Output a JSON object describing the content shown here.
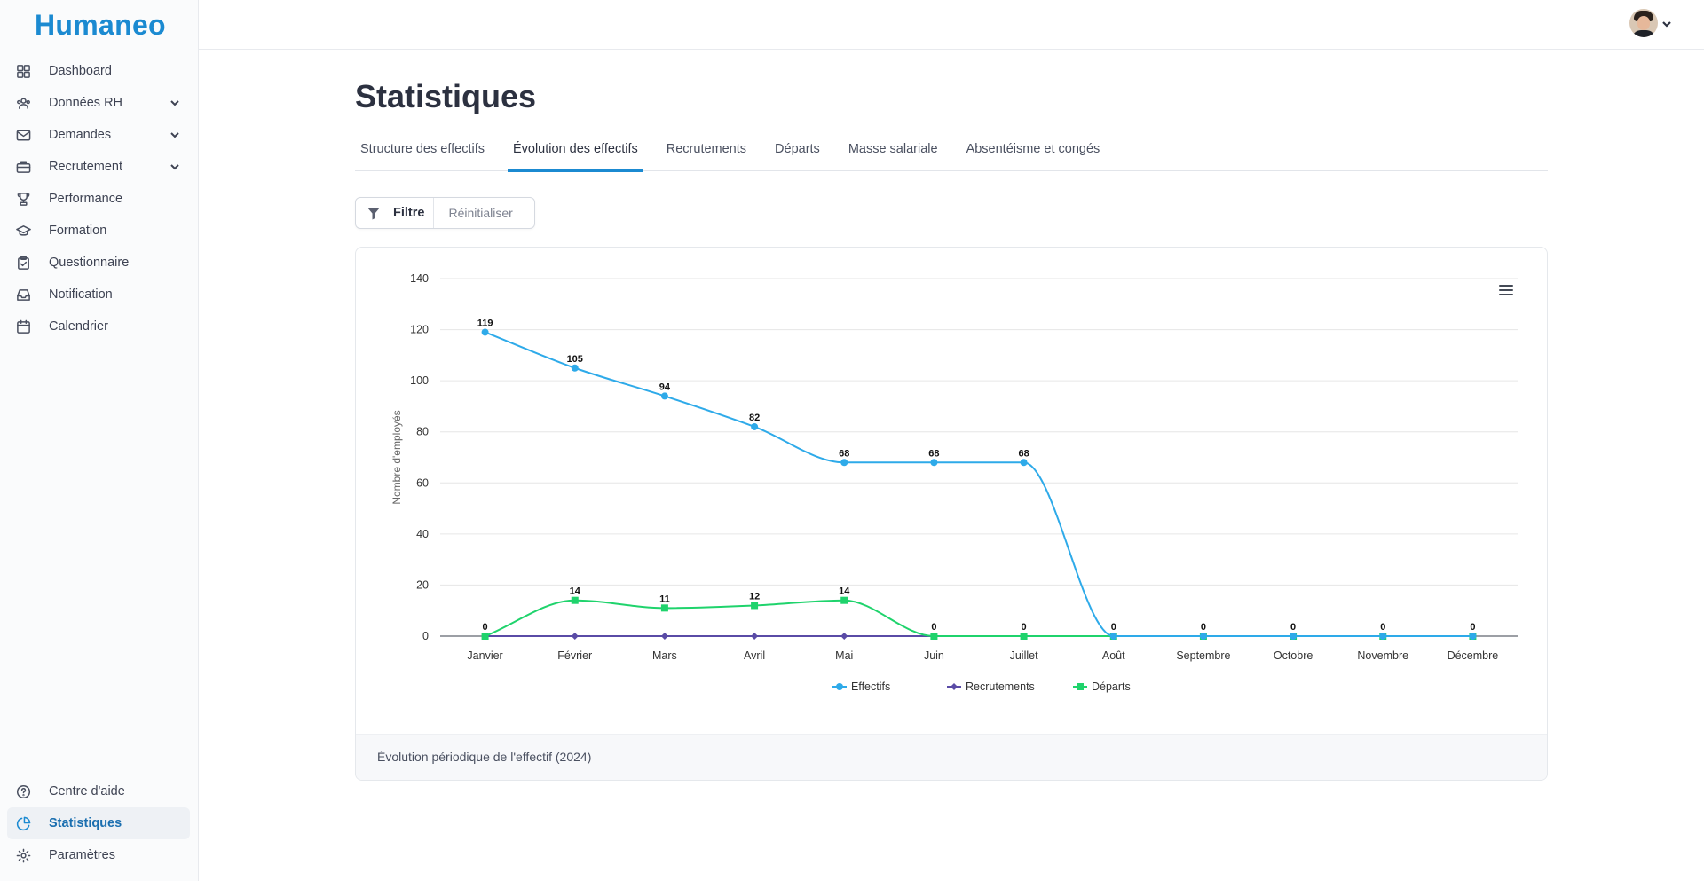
{
  "app": {
    "name": "Humaneo"
  },
  "sidebar": {
    "items": [
      {
        "label": "Dashboard",
        "icon": "grid-icon",
        "expandable": false
      },
      {
        "label": "Données RH",
        "icon": "users-icon",
        "expandable": true
      },
      {
        "label": "Demandes",
        "icon": "mail-icon",
        "expandable": true
      },
      {
        "label": "Recrutement",
        "icon": "briefcase-icon",
        "expandable": true
      },
      {
        "label": "Performance",
        "icon": "trophy-icon",
        "expandable": false
      },
      {
        "label": "Formation",
        "icon": "graduation-cap-icon",
        "expandable": false
      },
      {
        "label": "Questionnaire",
        "icon": "clipboard-icon",
        "expandable": false
      },
      {
        "label": "Notification",
        "icon": "inbox-icon",
        "expandable": false
      },
      {
        "label": "Calendrier",
        "icon": "calendar-icon",
        "expandable": false
      }
    ],
    "bottom_items": [
      {
        "label": "Centre d'aide",
        "icon": "help-circle-icon",
        "active": false
      },
      {
        "label": "Statistiques",
        "icon": "pie-chart-icon",
        "active": true
      },
      {
        "label": "Paramètres",
        "icon": "gear-icon",
        "active": false
      }
    ]
  },
  "page": {
    "title": "Statistiques"
  },
  "tabs": [
    {
      "label": "Structure des effectifs",
      "active": false
    },
    {
      "label": "Évolution des effectifs",
      "active": true
    },
    {
      "label": "Recrutements",
      "active": false
    },
    {
      "label": "Départs",
      "active": false
    },
    {
      "label": "Masse salariale",
      "active": false
    },
    {
      "label": "Absentéisme et congés",
      "active": false
    }
  ],
  "filter": {
    "label": "Filtre",
    "reset_label": "Réinitialiser"
  },
  "chart_footer": "Évolution périodique de l'effectif (2024)",
  "colors": {
    "accent": "#1b8ad1",
    "effectifs": "#2eaae9",
    "recrutements": "#5a4ba6",
    "departs": "#1fd36c"
  },
  "chart_data": {
    "type": "line",
    "categories": [
      "Janvier",
      "Février",
      "Mars",
      "Avril",
      "Mai",
      "Juin",
      "Juillet",
      "Août",
      "Septembre",
      "Octobre",
      "Novembre",
      "Décembre"
    ],
    "series": [
      {
        "name": "Effectifs",
        "values": [
          119,
          105,
          94,
          82,
          68,
          68,
          68,
          0,
          0,
          0,
          0,
          0
        ],
        "marker": "circle",
        "show_labels": [
          true,
          true,
          true,
          true,
          true,
          true,
          true,
          true,
          true,
          true,
          true,
          true
        ]
      },
      {
        "name": "Recrutements",
        "values": [
          0,
          0,
          0,
          0,
          0,
          0,
          0,
          0,
          0,
          0,
          0,
          0
        ],
        "marker": "diamond",
        "show_labels": [
          false,
          false,
          false,
          false,
          false,
          false,
          false,
          false,
          false,
          false,
          false,
          false
        ]
      },
      {
        "name": "Départs",
        "values": [
          0,
          14,
          11,
          12,
          14,
          0,
          0,
          0,
          0,
          0,
          0,
          0
        ],
        "marker": "square",
        "show_labels": [
          true,
          true,
          true,
          true,
          true,
          true,
          true,
          true,
          true,
          true,
          true,
          true
        ]
      }
    ],
    "xlabel": "",
    "ylabel": "Nombre d'employés",
    "ylim": [
      0,
      140
    ],
    "yticks": [
      0,
      20,
      40,
      60,
      80,
      100,
      120,
      140
    ],
    "grid": true,
    "legend": "bottom-center"
  }
}
